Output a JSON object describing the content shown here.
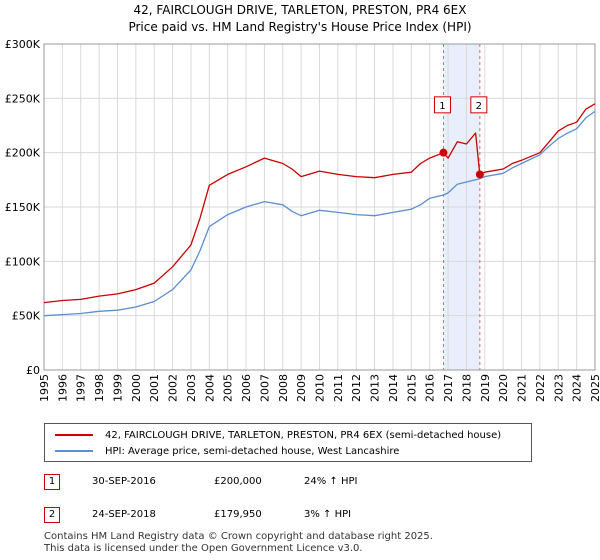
{
  "title_line1": "42, FAIRCLOUGH DRIVE, TARLETON, PRESTON, PR4 6EX",
  "title_line2": "Price paid vs. HM Land Registry's House Price Index (HPI)",
  "colors": {
    "property": "#cc0000",
    "hpi": "#5b8fd0",
    "shade": "#e8eefb",
    "grid": "#d9d9d9"
  },
  "chart_data": {
    "type": "line",
    "x_range": [
      1995,
      2025
    ],
    "ylim": [
      0,
      300000
    ],
    "y_ticks": [
      0,
      50000,
      100000,
      150000,
      200000,
      250000,
      300000
    ],
    "y_tick_labels": [
      "£0",
      "£50K",
      "£100K",
      "£150K",
      "£200K",
      "£250K",
      "£300K"
    ],
    "x_ticks": [
      "1995",
      "1996",
      "1997",
      "1998",
      "1999",
      "2000",
      "2001",
      "2002",
      "2003",
      "2004",
      "2005",
      "2006",
      "2007",
      "2008",
      "2009",
      "2010",
      "2011",
      "2012",
      "2013",
      "2014",
      "2015",
      "2016",
      "2017",
      "2018",
      "2019",
      "2020",
      "2021",
      "2022",
      "2023",
      "2024",
      "2025"
    ],
    "shaded_region": [
      2016.75,
      2018.73
    ],
    "series": [
      {
        "name": "42, FAIRCLOUGH DRIVE, TARLETON, PRESTON, PR4 6EX (semi-detached house)",
        "color": "#cc0000",
        "points": [
          [
            1995,
            62000
          ],
          [
            1996,
            64000
          ],
          [
            1997,
            65000
          ],
          [
            1998,
            68000
          ],
          [
            1999,
            70000
          ],
          [
            2000,
            74000
          ],
          [
            2001,
            80000
          ],
          [
            2002,
            95000
          ],
          [
            2003,
            115000
          ],
          [
            2003.5,
            140000
          ],
          [
            2004,
            170000
          ],
          [
            2005,
            180000
          ],
          [
            2006,
            187000
          ],
          [
            2007,
            195000
          ],
          [
            2008,
            190000
          ],
          [
            2008.5,
            185000
          ],
          [
            2009,
            178000
          ],
          [
            2010,
            183000
          ],
          [
            2011,
            180000
          ],
          [
            2012,
            178000
          ],
          [
            2013,
            177000
          ],
          [
            2014,
            180000
          ],
          [
            2015,
            182000
          ],
          [
            2015.5,
            190000
          ],
          [
            2016,
            195000
          ],
          [
            2016.75,
            200000
          ],
          [
            2017,
            195000
          ],
          [
            2017.5,
            210000
          ],
          [
            2018,
            208000
          ],
          [
            2018.5,
            218000
          ],
          [
            2018.73,
            179950
          ],
          [
            2019,
            182000
          ],
          [
            2020,
            185000
          ],
          [
            2020.5,
            190000
          ],
          [
            2021,
            193000
          ],
          [
            2022,
            200000
          ],
          [
            2022.5,
            210000
          ],
          [
            2023,
            220000
          ],
          [
            2023.5,
            225000
          ],
          [
            2024,
            228000
          ],
          [
            2024.5,
            240000
          ],
          [
            2025,
            245000
          ]
        ]
      },
      {
        "name": "HPI: Average price, semi-detached house, West Lancashire",
        "color": "#5b8fd0",
        "points": [
          [
            1995,
            50000
          ],
          [
            1996,
            51000
          ],
          [
            1997,
            52000
          ],
          [
            1998,
            54000
          ],
          [
            1999,
            55000
          ],
          [
            2000,
            58000
          ],
          [
            2001,
            63000
          ],
          [
            2002,
            74000
          ],
          [
            2003,
            92000
          ],
          [
            2003.5,
            110000
          ],
          [
            2004,
            132000
          ],
          [
            2005,
            143000
          ],
          [
            2006,
            150000
          ],
          [
            2007,
            155000
          ],
          [
            2008,
            152000
          ],
          [
            2008.5,
            146000
          ],
          [
            2009,
            142000
          ],
          [
            2010,
            147000
          ],
          [
            2011,
            145000
          ],
          [
            2012,
            143000
          ],
          [
            2013,
            142000
          ],
          [
            2014,
            145000
          ],
          [
            2015,
            148000
          ],
          [
            2015.5,
            152000
          ],
          [
            2016,
            158000
          ],
          [
            2016.75,
            161000
          ],
          [
            2017,
            163000
          ],
          [
            2017.5,
            171000
          ],
          [
            2018,
            173000
          ],
          [
            2018.73,
            176000
          ],
          [
            2019,
            178000
          ],
          [
            2020,
            181000
          ],
          [
            2020.5,
            186000
          ],
          [
            2021,
            190000
          ],
          [
            2022,
            198000
          ],
          [
            2022.5,
            206000
          ],
          [
            2023,
            213000
          ],
          [
            2023.5,
            218000
          ],
          [
            2024,
            222000
          ],
          [
            2024.5,
            232000
          ],
          [
            2025,
            238000
          ]
        ]
      }
    ],
    "markers": [
      {
        "label": "1",
        "x": 2016.75,
        "y": 200000
      },
      {
        "label": "2",
        "x": 2018.73,
        "y": 179950
      }
    ]
  },
  "legend": {
    "property_label": "42, FAIRCLOUGH DRIVE, TARLETON, PRESTON, PR4 6EX (semi-detached house)",
    "hpi_label": "HPI: Average price, semi-detached house, West Lancashire"
  },
  "sales": [
    {
      "num": "1",
      "date": "30-SEP-2016",
      "price": "£200,000",
      "hpi": "24% ↑ HPI"
    },
    {
      "num": "2",
      "date": "24-SEP-2018",
      "price": "£179,950",
      "hpi": "3% ↑ HPI"
    }
  ],
  "footer_line1": "Contains HM Land Registry data © Crown copyright and database right 2025.",
  "footer_line2": "This data is licensed under the Open Government Licence v3.0."
}
